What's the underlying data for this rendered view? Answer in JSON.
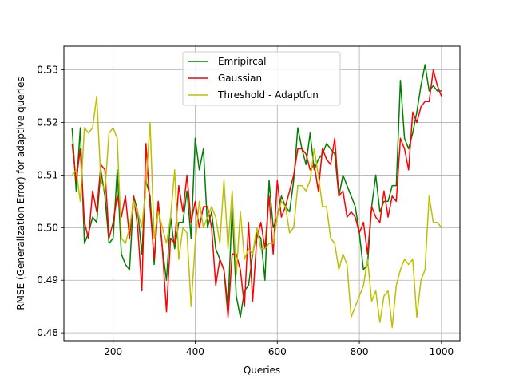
{
  "chart_data": {
    "type": "line",
    "title": "",
    "xlabel": "Queries",
    "ylabel": "RMSE (Generalization Error) for adaptive queries",
    "xlim": [
      80,
      1045
    ],
    "ylim": [
      0.4785,
      0.5345
    ],
    "grid": true,
    "legend_position": "top-center",
    "x_ticks": [
      200,
      400,
      600,
      800,
      1000
    ],
    "x_tick_labels": [
      "200",
      "400",
      "600",
      "800",
      "1000"
    ],
    "y_ticks": [
      0.48,
      0.49,
      0.5,
      0.51,
      0.52,
      0.53
    ],
    "y_tick_labels": [
      "0.48",
      "0.49",
      "0.50",
      "0.51",
      "0.52",
      "0.53"
    ],
    "x": [
      100,
      110,
      120,
      130,
      140,
      150,
      160,
      170,
      180,
      190,
      200,
      210,
      220,
      230,
      240,
      250,
      260,
      270,
      280,
      290,
      300,
      310,
      320,
      330,
      340,
      350,
      360,
      370,
      380,
      390,
      400,
      410,
      420,
      430,
      440,
      450,
      460,
      470,
      480,
      490,
      500,
      510,
      520,
      530,
      540,
      550,
      560,
      570,
      580,
      590,
      600,
      610,
      620,
      630,
      640,
      650,
      660,
      670,
      680,
      690,
      700,
      710,
      720,
      730,
      740,
      750,
      760,
      770,
      780,
      790,
      800,
      810,
      820,
      830,
      840,
      850,
      860,
      870,
      880,
      890,
      900,
      910,
      920,
      930,
      940,
      950,
      960,
      970,
      980,
      990,
      1000
    ],
    "series": [
      {
        "name": "Emripircal",
        "color": "#008000",
        "values": [
          0.519,
          0.507,
          0.519,
          0.497,
          0.499,
          0.502,
          0.501,
          0.511,
          0.506,
          0.497,
          0.498,
          0.511,
          0.495,
          0.493,
          0.492,
          0.506,
          0.503,
          0.495,
          0.509,
          0.506,
          0.493,
          0.505,
          0.496,
          0.49,
          0.502,
          0.496,
          0.501,
          0.501,
          0.507,
          0.498,
          0.517,
          0.511,
          0.515,
          0.5,
          0.503,
          0.496,
          0.494,
          0.492,
          0.485,
          0.504,
          0.487,
          0.483,
          0.488,
          0.489,
          0.495,
          0.499,
          0.498,
          0.49,
          0.509,
          0.5,
          0.502,
          0.506,
          0.504,
          0.503,
          0.509,
          0.519,
          0.515,
          0.512,
          0.518,
          0.511,
          0.513,
          0.514,
          0.516,
          0.515,
          0.514,
          0.506,
          0.51,
          0.508,
          0.506,
          0.504,
          0.499,
          0.492,
          0.493,
          0.504,
          0.51,
          0.503,
          0.505,
          0.505,
          0.508,
          0.508,
          0.528,
          0.517,
          0.515,
          0.518,
          0.522,
          0.527,
          0.531,
          0.526,
          0.527,
          0.526,
          0.526
        ]
      },
      {
        "name": "Gaussian",
        "color": "#ff0000",
        "values": [
          0.516,
          0.509,
          0.515,
          0.501,
          0.498,
          0.507,
          0.503,
          0.512,
          0.511,
          0.498,
          0.501,
          0.506,
          0.502,
          0.506,
          0.498,
          0.506,
          0.5,
          0.488,
          0.516,
          0.504,
          0.494,
          0.505,
          0.496,
          0.484,
          0.498,
          0.497,
          0.508,
          0.503,
          0.51,
          0.501,
          0.505,
          0.5,
          0.504,
          0.504,
          0.5,
          0.489,
          0.494,
          0.492,
          0.483,
          0.495,
          0.495,
          0.492,
          0.485,
          0.501,
          0.486,
          0.498,
          0.501,
          0.496,
          0.506,
          0.495,
          0.509,
          0.502,
          0.504,
          0.507,
          0.51,
          0.515,
          0.515,
          0.514,
          0.511,
          0.512,
          0.507,
          0.515,
          0.513,
          0.512,
          0.517,
          0.506,
          0.507,
          0.502,
          0.503,
          0.502,
          0.499,
          0.501,
          0.495,
          0.504,
          0.502,
          0.501,
          0.507,
          0.502,
          0.506,
          0.505,
          0.517,
          0.515,
          0.511,
          0.522,
          0.52,
          0.523,
          0.524,
          0.524,
          0.53,
          0.527,
          0.525
        ]
      },
      {
        "name": "Threshold - Adaptfun",
        "color": "#bfbf00",
        "values": [
          0.51,
          0.511,
          0.505,
          0.519,
          0.518,
          0.519,
          0.525,
          0.509,
          0.507,
          0.518,
          0.519,
          0.517,
          0.498,
          0.497,
          0.5,
          0.505,
          0.503,
          0.5,
          0.508,
          0.52,
          0.498,
          0.503,
          0.5,
          0.497,
          0.502,
          0.511,
          0.494,
          0.5,
          0.499,
          0.485,
          0.497,
          0.505,
          0.5,
          0.502,
          0.504,
          0.502,
          0.497,
          0.509,
          0.496,
          0.507,
          0.491,
          0.503,
          0.494,
          0.496,
          0.495,
          0.5,
          0.496,
          0.496,
          0.497,
          0.497,
          0.502,
          0.505,
          0.504,
          0.499,
          0.5,
          0.508,
          0.508,
          0.507,
          0.509,
          0.515,
          0.51,
          0.504,
          0.504,
          0.498,
          0.497,
          0.492,
          0.495,
          0.493,
          0.483,
          0.485,
          0.487,
          0.489,
          0.494,
          0.486,
          0.488,
          0.482,
          0.487,
          0.488,
          0.481,
          0.489,
          0.492,
          0.494,
          0.493,
          0.494,
          0.483,
          0.49,
          0.492,
          0.506,
          0.501,
          0.501,
          0.5
        ]
      }
    ]
  }
}
